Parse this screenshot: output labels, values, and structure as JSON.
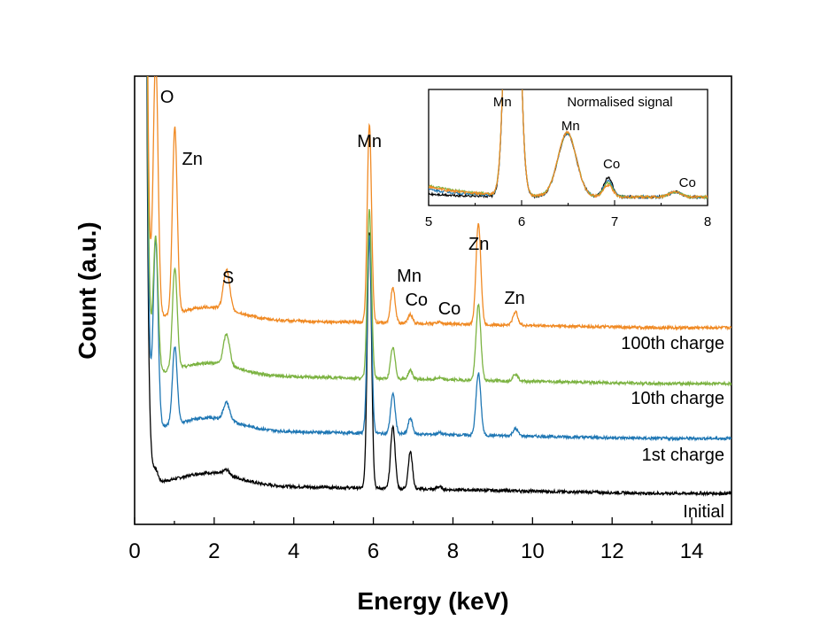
{
  "chart_data": [
    {
      "type": "line",
      "xlabel": "Energy (keV)",
      "ylabel": "Count (a.u.)",
      "xlim": [
        0,
        15
      ],
      "x_ticks": [
        "0",
        "2",
        "4",
        "6",
        "8",
        "10",
        "12",
        "14"
      ],
      "y_ticks_shown": false,
      "grid": false,
      "series": [
        {
          "name": "Initial",
          "color": "#000000",
          "offset": 0,
          "peaks": [
            [
              0.53,
              12
            ],
            [
              1.01,
              0
            ],
            [
              2.31,
              6
            ],
            [
              5.9,
              290
            ],
            [
              6.49,
              70
            ],
            [
              6.93,
              42
            ],
            [
              7.65,
              3
            ],
            [
              8.64,
              0
            ],
            [
              9.57,
              0
            ]
          ]
        },
        {
          "name": "1st charge",
          "color": "#1f77b4",
          "offset": 62,
          "peaks": [
            [
              0.53,
              210
            ],
            [
              1.01,
              88
            ],
            [
              2.31,
              20
            ],
            [
              5.9,
              225
            ],
            [
              6.49,
              45
            ],
            [
              6.93,
              18
            ],
            [
              7.65,
              2
            ],
            [
              8.64,
              70
            ],
            [
              9.57,
              8
            ]
          ]
        },
        {
          "name": "10th charge",
          "color": "#7cb342",
          "offset": 124,
          "peaks": [
            [
              0.53,
              150
            ],
            [
              1.01,
              115
            ],
            [
              2.31,
              35
            ],
            [
              5.9,
              190
            ],
            [
              6.49,
              35
            ],
            [
              6.93,
              10
            ],
            [
              7.65,
              2
            ],
            [
              8.64,
              85
            ],
            [
              9.57,
              8
            ]
          ]
        },
        {
          "name": "100th charge",
          "color": "#f08a24",
          "offset": 187,
          "peaks": [
            [
              0.53,
              290
            ],
            [
              1.01,
              210
            ],
            [
              2.31,
              45
            ],
            [
              5.9,
              225
            ],
            [
              6.49,
              40
            ],
            [
              6.93,
              10
            ],
            [
              7.65,
              2
            ],
            [
              8.64,
              115
            ],
            [
              9.57,
              15
            ]
          ]
        }
      ],
      "annotations": [
        {
          "text": "O",
          "x": 0.55
        },
        {
          "text": "Zn",
          "x": 1.05
        },
        {
          "text": "S",
          "x": 2.35
        },
        {
          "text": "Mn",
          "x": 5.9
        },
        {
          "text": "Mn",
          "x": 6.5
        },
        {
          "text": "Co",
          "x": 6.95
        },
        {
          "text": "Co",
          "x": 7.6
        },
        {
          "text": "Zn",
          "x": 8.65
        },
        {
          "text": "Zn",
          "x": 9.55
        }
      ],
      "series_labels": [
        "100th charge",
        "10th charge",
        "1st charge",
        "Initial"
      ]
    },
    {
      "type": "line",
      "title": "Normalised signal",
      "xlim": [
        5,
        8
      ],
      "x_ticks": [
        "5",
        "6",
        "7",
        "8"
      ],
      "series_colors": [
        "#000000",
        "#1f77b4",
        "#7cb342",
        "#f08a24"
      ],
      "annotations": [
        {
          "text": "Mn",
          "x": 5.85
        },
        {
          "text": "Mn",
          "x": 6.47
        },
        {
          "text": "Co",
          "x": 6.93
        },
        {
          "text": "Co",
          "x": 7.65
        }
      ]
    }
  ]
}
